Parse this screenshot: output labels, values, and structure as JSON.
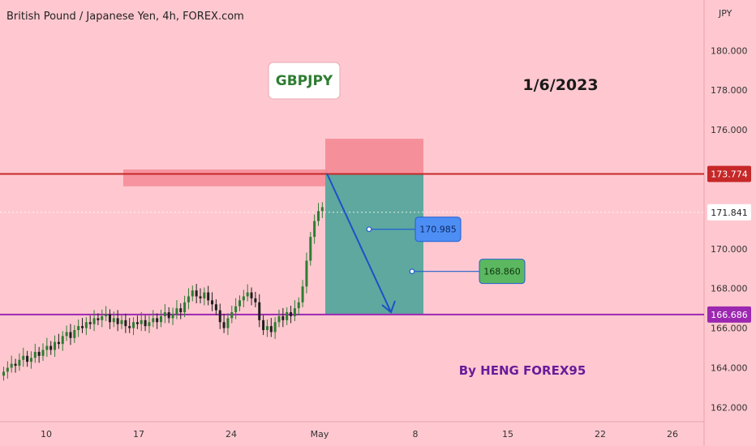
{
  "header": {
    "symbol_title": "British Pound / Japanese Yen, 4h, FOREX.com",
    "currency": "JPY"
  },
  "annotations": {
    "symbol_box": "GBPJPY",
    "date": "1/6/2023",
    "author": "By HENG FOREX95"
  },
  "colors": {
    "background": "#ffc8d0",
    "resistance": "#c62828",
    "support": "#9c27b0",
    "stop_zone": "#f48a95",
    "target_zone": "#5fa89f",
    "arrow": "#1e50c8",
    "candle_up": "#2e7d32",
    "candle_down": "#1f1f1f",
    "label_blue": "#4d8ef5",
    "label_green": "#5cb860",
    "author": "#6a1b9a",
    "symbol_text": "#2e7d32"
  },
  "chart_data": {
    "type": "candlestick",
    "interval": "4h",
    "x_ticks": [
      "10",
      "17",
      "24",
      "May",
      "8",
      "15",
      "22",
      "26"
    ],
    "y_ticks": [
      "162.000",
      "164.000",
      "166.000",
      "168.000",
      "170.000",
      "172.000",
      "174.000",
      "176.000",
      "178.000",
      "180.000"
    ],
    "ylim": [
      161.0,
      182.0
    ],
    "horizontal_lines": [
      {
        "name": "resistance",
        "price": 173.774,
        "label": "173.774"
      },
      {
        "name": "support",
        "price": 166.686,
        "label": "166.686"
      }
    ],
    "last_price": {
      "price": 171.841,
      "label": "171.841"
    },
    "targets": [
      {
        "price": 170.985,
        "label": "170.985"
      },
      {
        "price": 168.86,
        "label": "168.860"
      }
    ],
    "resistance_zone": {
      "top": 174.0,
      "bottom": 173.15
    },
    "short_position": {
      "entry": 173.774,
      "stop": 175.55,
      "target": 166.686
    },
    "arrow": {
      "from_price": 173.8,
      "to_price": 166.8
    },
    "candles_close": [
      163.8,
      164.0,
      164.2,
      164.1,
      164.4,
      164.6,
      164.3,
      164.5,
      164.8,
      164.6,
      164.9,
      165.1,
      164.9,
      165.3,
      165.2,
      165.6,
      165.8,
      165.5,
      165.9,
      166.1,
      166.0,
      166.3,
      166.2,
      166.5,
      166.4,
      166.6,
      166.7,
      166.3,
      166.5,
      166.2,
      166.4,
      166.1,
      166.0,
      166.3,
      166.2,
      166.4,
      166.1,
      166.3,
      166.5,
      166.3,
      166.6,
      166.8,
      166.5,
      166.7,
      167.0,
      166.8,
      167.3,
      167.6,
      167.9,
      167.6,
      167.5,
      167.8,
      167.4,
      167.2,
      166.9,
      166.3,
      166.0,
      166.5,
      166.8,
      167.1,
      167.4,
      167.6,
      167.8,
      167.5,
      167.3,
      166.4,
      165.9,
      166.1,
      165.8,
      166.3,
      166.6,
      166.4,
      166.8,
      166.6,
      167.0,
      167.3,
      168.1,
      169.4,
      170.6,
      171.4,
      171.9,
      172.1
    ]
  }
}
